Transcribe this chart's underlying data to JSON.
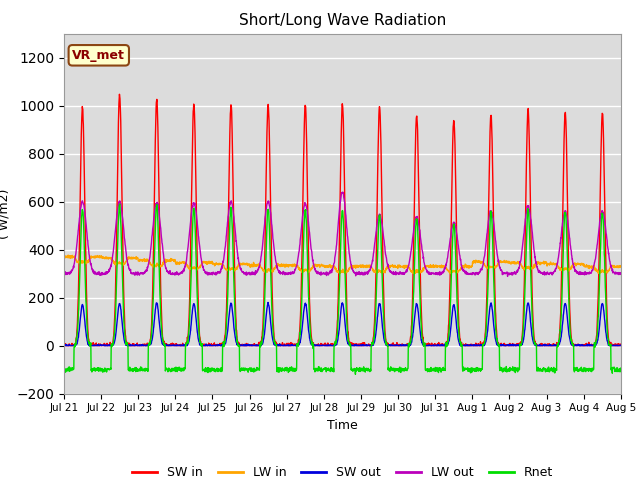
{
  "title": "Short/Long Wave Radiation",
  "xlabel": "Time",
  "ylabel": "( W/m2)",
  "ylim": [
    -200,
    1300
  ],
  "yticks": [
    -200,
    0,
    200,
    400,
    600,
    800,
    1000,
    1200
  ],
  "x_tick_labels": [
    "Jul 21",
    "Jul 22",
    "Jul 23",
    "Jul 24",
    "Jul 25",
    "Jul 26",
    "Jul 27",
    "Jul 28",
    "Jul 29",
    "Jul 30",
    "Jul 31",
    "Aug 1",
    "Aug 2",
    "Aug 3",
    "Aug 4",
    "Aug 5"
  ],
  "colors": {
    "SW_in": "#ff0000",
    "LW_in": "#ffa500",
    "SW_out": "#0000dd",
    "LW_out": "#bb00bb",
    "Rnet": "#00dd00"
  },
  "bg_color": "#dcdcdc",
  "annotation": "VR_met",
  "n_days": 15,
  "pts_per_day": 144
}
